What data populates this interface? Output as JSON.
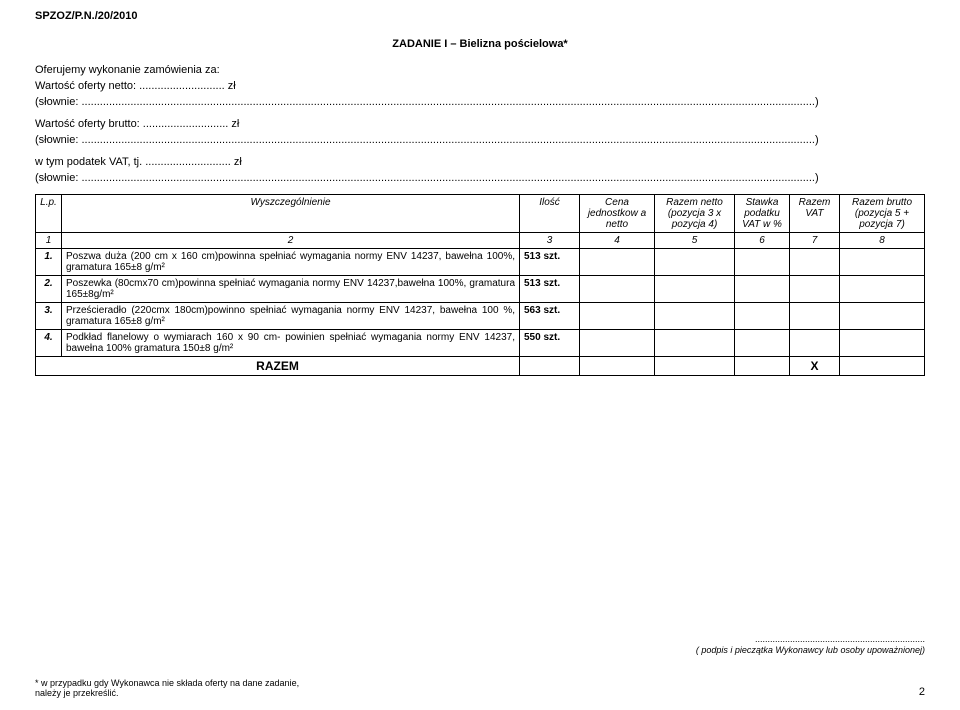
{
  "header": {
    "doc_id": "SPZOZ/P.N./20/2010",
    "title": "ZADANIE I – Bielizna pościelowa*",
    "offer_intro": "Oferujemy wykonanie zamówienia za:",
    "netto_label": "Wartość oferty netto:   ............................ zł",
    "slownie_open": "(słownie: ",
    "slownie_dots": "................................................................................................................................................................................................................................................",
    "slownie_close": ")",
    "brutto_label": "Wartość oferty brutto:  ............................ zł",
    "vat_label": "w tym podatek VAT, tj. ............................ zł"
  },
  "table": {
    "head": {
      "lp": "L.p.",
      "wysz": "Wyszczególnienie",
      "ilosc": "Ilość",
      "cena": "Cena jednostkow a netto",
      "rnetto": "Razem netto (pozycja 3 x pozycja 4)",
      "stawka": "Stawka podatku VAT w %",
      "rvat": "Razem VAT",
      "rbrutto": "Razem brutto (pozycja 5 + pozycja 7)"
    },
    "num_row": [
      "1",
      "2",
      "3",
      "4",
      "5",
      "6",
      "7",
      "8"
    ],
    "rows": [
      {
        "n": "1.",
        "desc": "Poszwa duża (200 cm x 160 cm)powinna spełniać wymagania normy ENV 14237, bawełna 100%, gramatura 165±8 g/m²",
        "qty": "513 szt."
      },
      {
        "n": "2.",
        "desc": "Poszewka (80cmx70 cm)powinna spełniać wymagania normy ENV 14237,bawełna 100%, gramatura 165±8g/m²",
        "qty": "513 szt."
      },
      {
        "n": "3.",
        "desc": "Prześcieradło (220cmx 180cm)powinno spełniać wymagania normy ENV 14237, bawełna 100 %, gramatura 165±8 g/m²",
        "qty": "563 szt."
      },
      {
        "n": "4.",
        "desc": "Podkład flanelowy o wymiarach 160 x 90 cm- powinien spełniać wymagania normy ENV 14237, bawełna 100% gramatura 150±8 g/m²",
        "qty": "550 szt."
      }
    ],
    "razem": "RAZEM",
    "x": "X"
  },
  "signature": {
    "dots": "....................................................................",
    "caption": "( podpis i pieczątka Wykonawcy lub osoby upoważnionej)"
  },
  "footnote": {
    "line1": "* w przypadku gdy Wykonawca nie składa oferty na dane zadanie,",
    "line2": "  należy je przekreślić."
  },
  "page": "2"
}
